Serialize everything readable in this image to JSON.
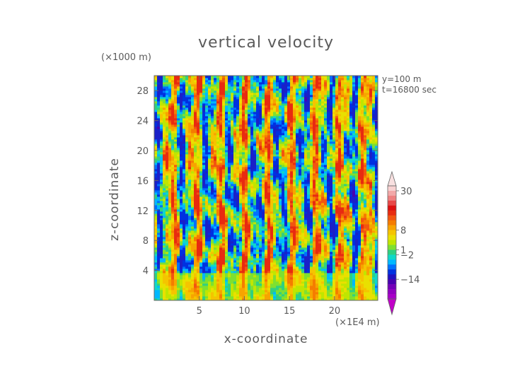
{
  "chart_data": {
    "type": "heatmap",
    "title": "vertical velocity",
    "xlabel": "x-coordinate",
    "ylabel": "z-coordinate",
    "x_unit_label": "(×1E4 m)",
    "z_unit_label": "(×1000 m)",
    "annotations": [
      "y=100 m",
      "t=16800 sec"
    ],
    "xlim": [
      0,
      24.8
    ],
    "ylim": [
      0,
      30
    ],
    "x_ticks": [
      5,
      10,
      15,
      20
    ],
    "y_ticks": [
      4,
      8,
      12,
      16,
      20,
      24,
      28
    ],
    "colorbar": {
      "tick_labels": [
        "30",
        "8",
        "1",
        "−2",
        "−14"
      ],
      "tick_values": [
        30,
        8,
        1,
        -2,
        -14
      ],
      "colors_top_to_bottom": [
        "#f8d2d2",
        "#f2a8a8",
        "#ee8080",
        "#e84848",
        "#dd1010",
        "#e82b10",
        "#f25510",
        "#f57c00",
        "#f7a400",
        "#f5c400",
        "#e9e000",
        "#c0e600",
        "#7ee030",
        "#30d080",
        "#10d8c8",
        "#00b8ff",
        "#0070ff",
        "#0030e0",
        "#2010c0",
        "#4800b0",
        "#7400b8",
        "#9000c0",
        "#a800c8"
      ],
      "lower_triangle_color": "#c000c8",
      "upper_triangle_color": "#f8e0e0"
    },
    "field_description_values": "turbulent vertical velocity field, values between about -14 and 30, dominated by -2..8",
    "grid": false
  }
}
